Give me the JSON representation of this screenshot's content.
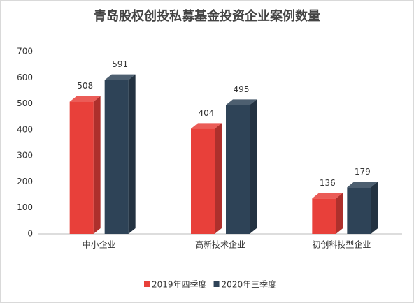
{
  "chart_data": {
    "type": "bar3d",
    "title": "青岛股权创投私募基金投资企业案例数量",
    "categories": [
      "中小企业",
      "高新技术企业",
      "初创科技型企业"
    ],
    "series": [
      {
        "name": "2019年四季度",
        "color": "#e8403a",
        "values": [
          508,
          404,
          136
        ]
      },
      {
        "name": "2020年三季度",
        "color": "#2e4357",
        "values": [
          591,
          495,
          179
        ]
      }
    ],
    "ylim": [
      0,
      700
    ],
    "yticks": [
      0,
      100,
      200,
      300,
      400,
      500,
      600,
      700
    ],
    "grid": false,
    "legend": "bottom"
  }
}
